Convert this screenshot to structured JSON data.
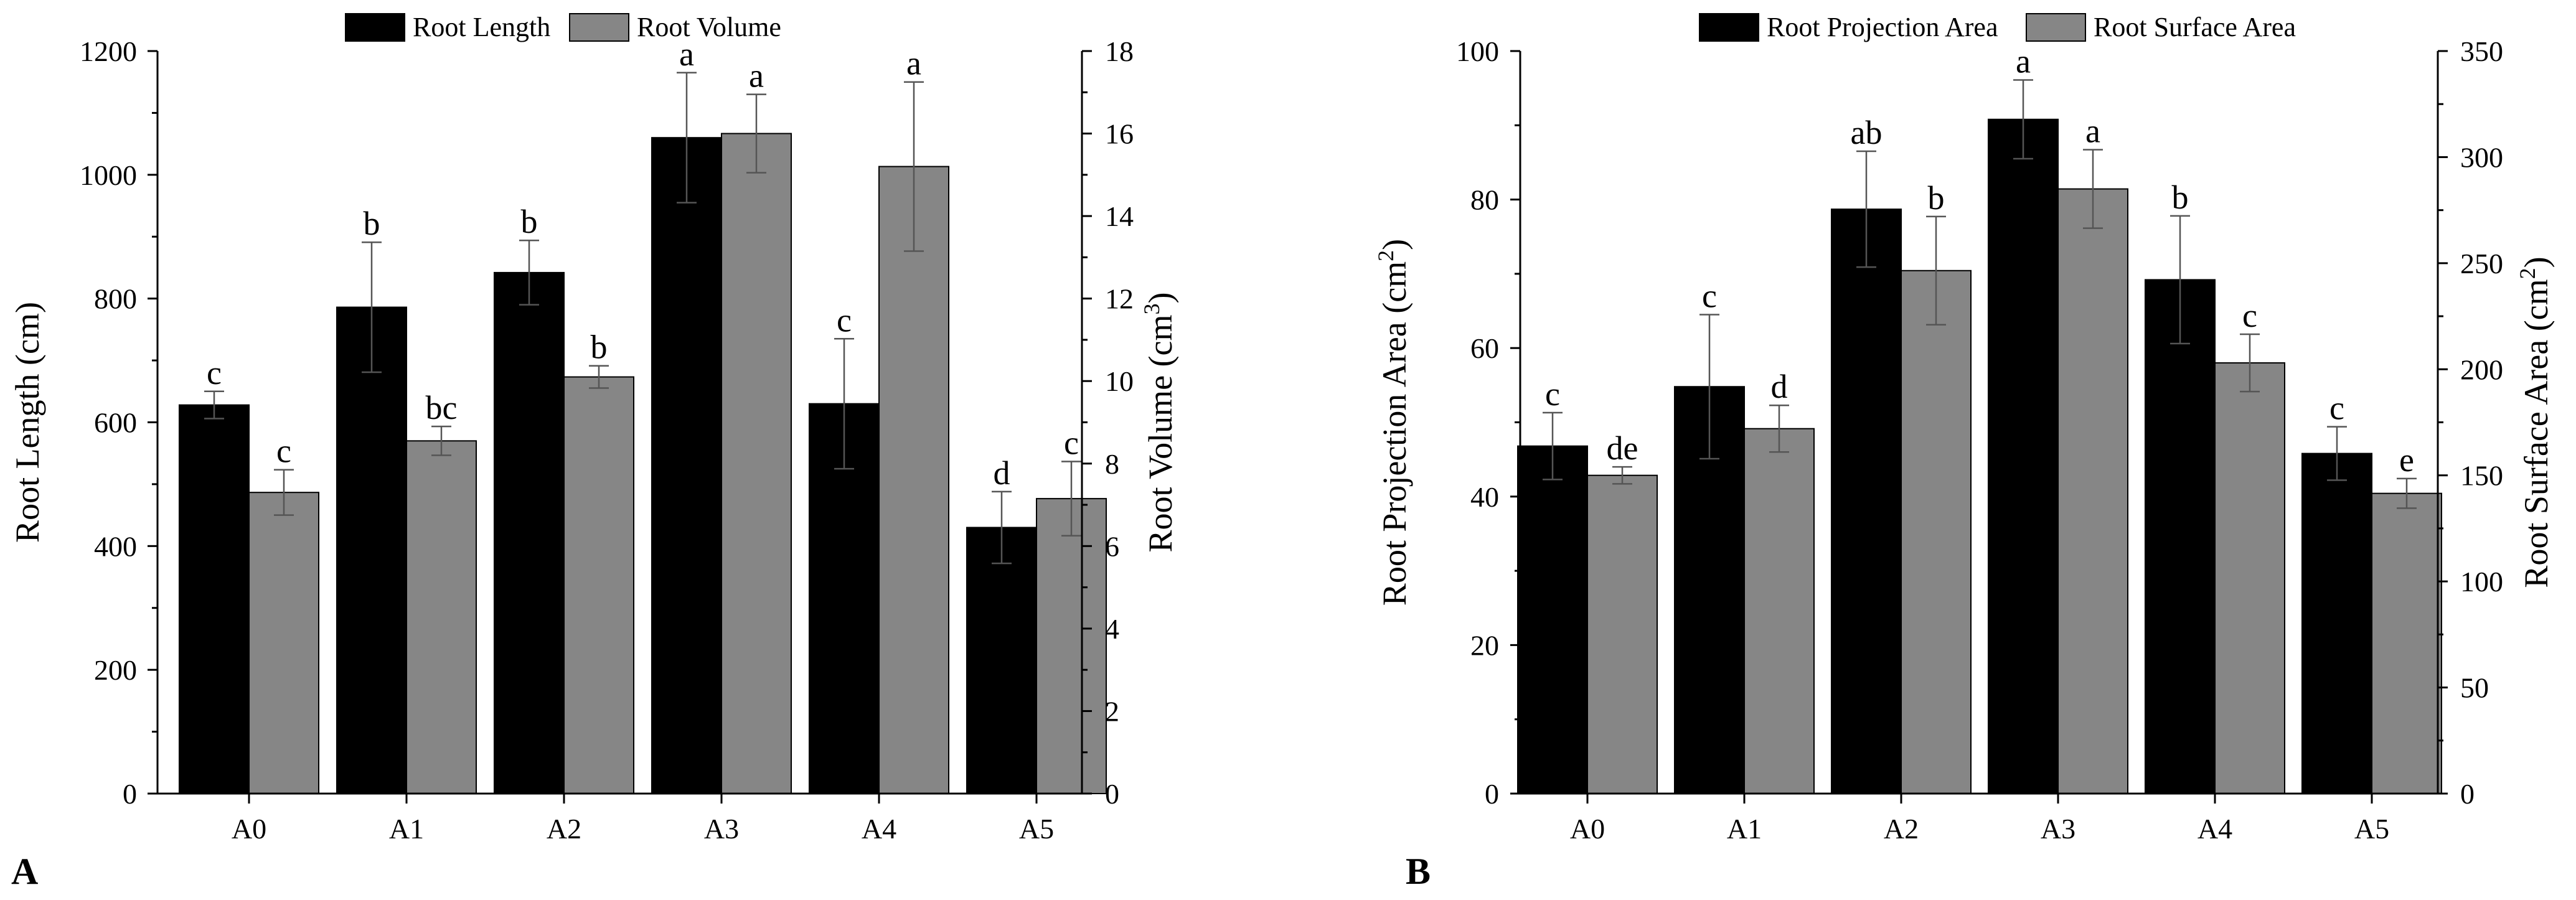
{
  "colors": {
    "primary": "#000000",
    "secondary": "#868686",
    "axis": "#000000",
    "errorbar": "#555555"
  },
  "chart_data": [
    {
      "panel": "A",
      "type": "bar",
      "categories": [
        "A0",
        "A1",
        "A2",
        "A3",
        "A4",
        "A5"
      ],
      "left_axis": {
        "label_main": "Root Length (cm)",
        "range": [
          0,
          1200
        ],
        "ticks": [
          "0",
          "200",
          "400",
          "600",
          "800",
          "1000",
          "1200"
        ]
      },
      "right_axis": {
        "label_main": "Root Volume (cm",
        "label_sup": "3",
        "label_tail": ")",
        "range": [
          0,
          18
        ],
        "ticks": [
          "0",
          "2",
          "4",
          "6",
          "8",
          "10",
          "12",
          "14",
          "16",
          "18"
        ]
      },
      "series": [
        {
          "name": "Root Length",
          "axis": "left",
          "color": "#000000",
          "values": [
            628,
            786,
            842,
            1060,
            630,
            430
          ],
          "errors": [
            22,
            105,
            52,
            105,
            105,
            58
          ],
          "labels": [
            "c",
            "b",
            "b",
            "a",
            "c",
            "d"
          ]
        },
        {
          "name": "Root Volume",
          "axis": "right",
          "color": "#868686",
          "values": [
            7.3,
            8.55,
            10.1,
            16.0,
            15.2,
            7.15
          ],
          "errors": [
            0.55,
            0.35,
            0.27,
            0.95,
            2.05,
            0.9
          ],
          "labels": [
            "c",
            "bc",
            "b",
            "a",
            "a",
            "c"
          ]
        }
      ]
    },
    {
      "panel": "B",
      "type": "bar",
      "categories": [
        "A0",
        "A1",
        "A2",
        "A3",
        "A4",
        "A5"
      ],
      "left_axis": {
        "label_main": "Root Projection Area (cm",
        "label_sup": "2",
        "label_tail": ")",
        "range": [
          0,
          100
        ],
        "ticks": [
          "0",
          "20",
          "40",
          "60",
          "80",
          "100"
        ]
      },
      "right_axis": {
        "label_main": "Root Surface Area (cm",
        "label_sup": "2",
        "label_tail": ")",
        "range": [
          0,
          350
        ],
        "ticks": [
          "0",
          "50",
          "100",
          "150",
          "200",
          "250",
          "300",
          "350"
        ]
      },
      "series": [
        {
          "name": "Root Projection Area",
          "axis": "left",
          "color": "#000000",
          "values": [
            46.8,
            54.8,
            78.7,
            90.8,
            69.2,
            45.8
          ],
          "errors": [
            4.5,
            9.7,
            7.8,
            5.3,
            8.6,
            3.6
          ],
          "labels": [
            "c",
            "c",
            "ab",
            "a",
            "b",
            "c"
          ]
        },
        {
          "name": "Root Surface Area",
          "axis": "right",
          "color": "#868686",
          "values": [
            150,
            172,
            246.5,
            285,
            203,
            141.5
          ],
          "errors": [
            4,
            11,
            25.5,
            18.5,
            13.5,
            7
          ],
          "labels": [
            "de",
            "d",
            "b",
            "a",
            "c",
            "e"
          ]
        }
      ]
    }
  ]
}
